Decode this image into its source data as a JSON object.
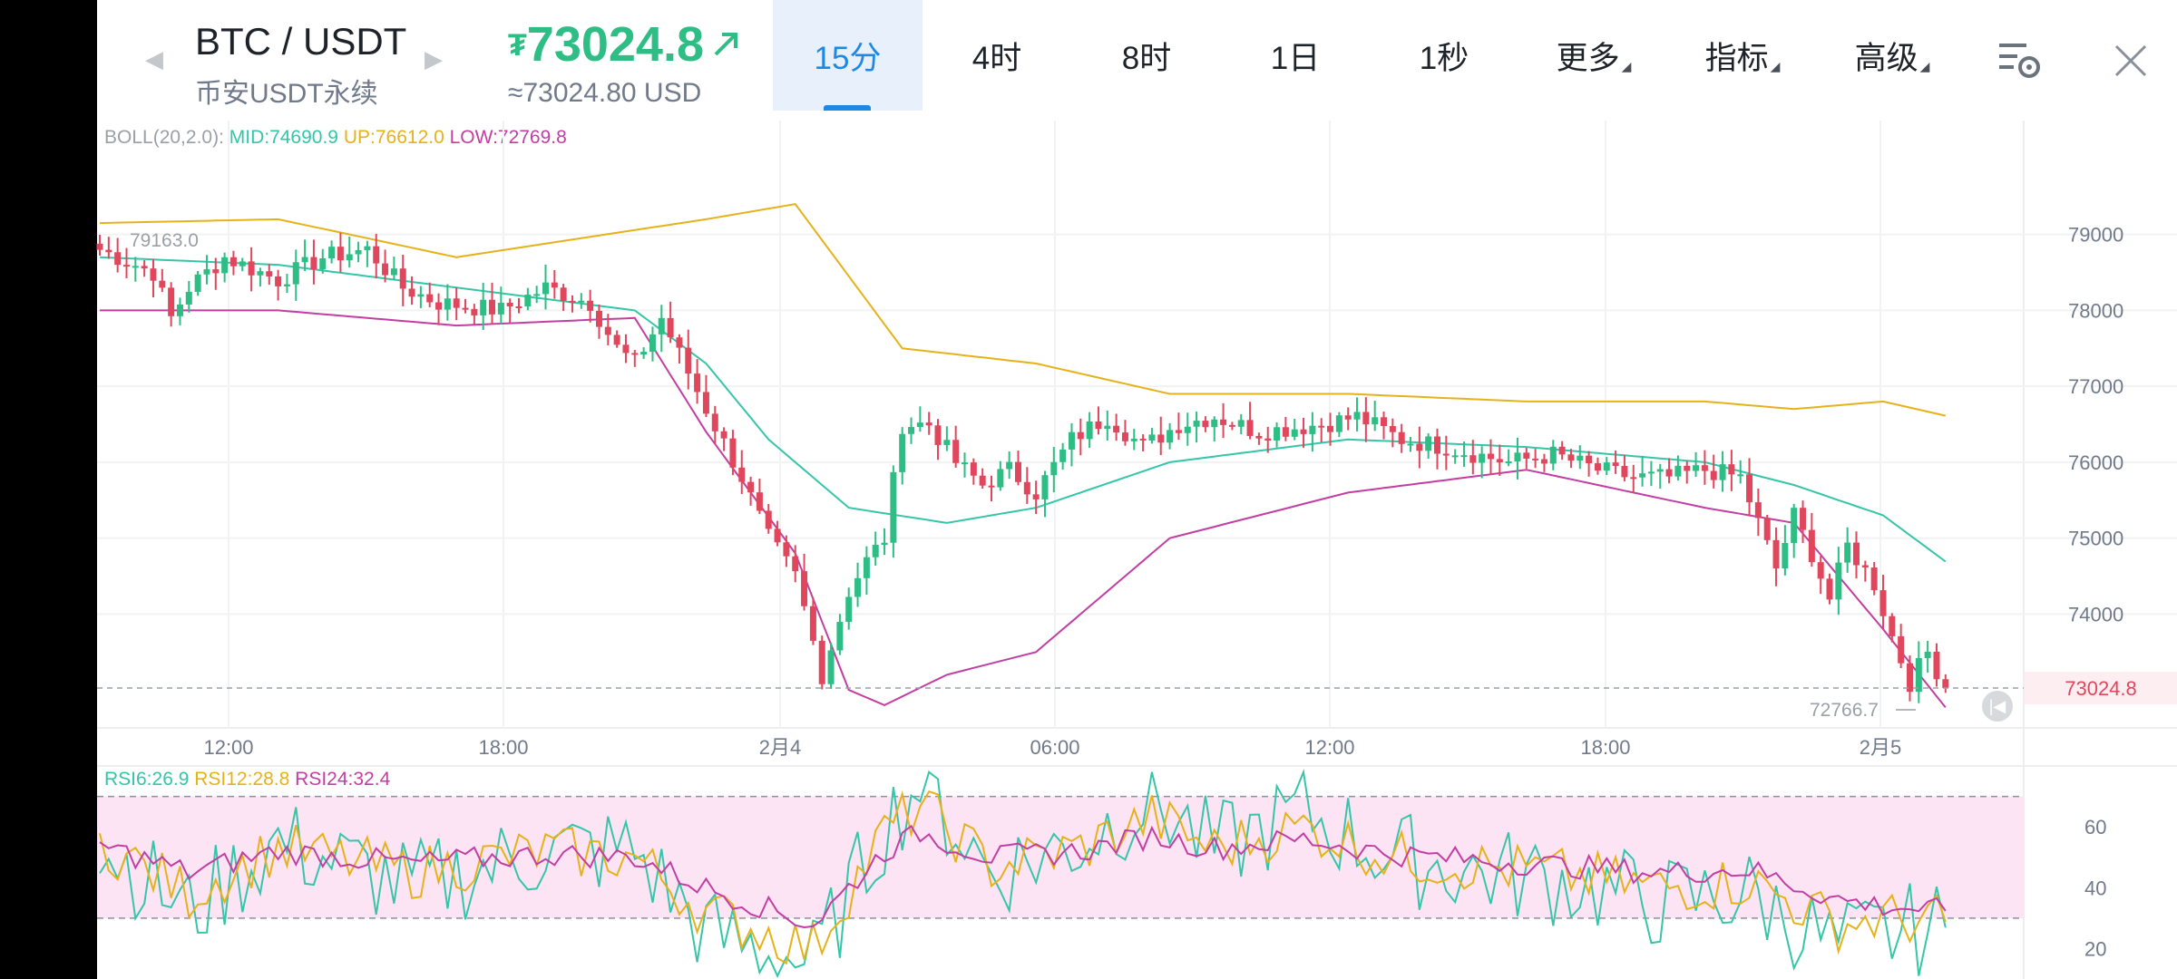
{
  "header": {
    "pair": "BTC / USDT",
    "market": "币安USDT永续",
    "price": "73024.8",
    "price_usd": "≈73024.80 USD",
    "tabs": [
      {
        "label": "15分",
        "active": true
      },
      {
        "label": "4时",
        "active": false
      },
      {
        "label": "8时",
        "active": false
      },
      {
        "label": "1日",
        "active": false
      },
      {
        "label": "1秒",
        "active": false
      },
      {
        "label": "更多",
        "active": false
      },
      {
        "label": "指标",
        "active": false
      },
      {
        "label": "高级",
        "active": false
      }
    ],
    "icons": [
      "left-arrow",
      "right-arrow",
      "trend-up-arrow",
      "chart-settings-icon",
      "close-icon"
    ]
  },
  "colors": {
    "up": "#2ebd85",
    "down": "#e0475d",
    "boll_mid": "#35c5a8",
    "boll_up": "#e6b21a",
    "boll_low": "#c23ea2",
    "rsi6": "#35c5a8",
    "rsi12": "#e6b21a",
    "rsi24": "#c23ea2",
    "accent": "#1e88e5"
  },
  "boll_legend": {
    "label": "BOLL(20,2.0):",
    "mid": "MID:74690.9",
    "up": "UP:76612.0",
    "low": "LOW:72769.8"
  },
  "rsi_legend": {
    "r6": "RSI6:26.9",
    "r12": "RSI12:28.8",
    "r24": "RSI24:32.4"
  },
  "chart_data": [
    {
      "type": "candlestick",
      "y_ticks": [
        79000,
        78000,
        77000,
        76000,
        75000,
        74000
      ],
      "ylim": [
        72500,
        80500
      ],
      "x_ticks": [
        "12:00",
        "18:00",
        "2月4",
        "06:00",
        "12:00",
        "18:00",
        "2月5"
      ],
      "annotations": {
        "high_marker": "79163.0",
        "low_marker": "72766.7",
        "last_price": "73024.8"
      },
      "close_anchors": [
        [
          0,
          78800
        ],
        [
          6,
          78500
        ],
        [
          8,
          77900
        ],
        [
          10,
          78300
        ],
        [
          14,
          78700
        ],
        [
          20,
          78400
        ],
        [
          25,
          78700
        ],
        [
          30,
          78800
        ],
        [
          34,
          78300
        ],
        [
          38,
          78100
        ],
        [
          45,
          78000
        ],
        [
          50,
          78300
        ],
        [
          55,
          78100
        ],
        [
          58,
          77500
        ],
        [
          60,
          77300
        ],
        [
          63,
          77900
        ],
        [
          68,
          76700
        ],
        [
          72,
          75800
        ],
        [
          75,
          75000
        ],
        [
          78,
          74500
        ],
        [
          81,
          73200
        ],
        [
          84,
          74300
        ],
        [
          86,
          74700
        ],
        [
          88,
          75000
        ],
        [
          90,
          76500
        ],
        [
          93,
          76500
        ],
        [
          96,
          76000
        ],
        [
          99,
          75700
        ],
        [
          102,
          75900
        ],
        [
          105,
          75600
        ],
        [
          109,
          76300
        ],
        [
          113,
          76600
        ],
        [
          117,
          76200
        ],
        [
          121,
          76500
        ],
        [
          125,
          76600
        ],
        [
          130,
          76400
        ],
        [
          137,
          76500
        ],
        [
          141,
          76600
        ],
        [
          146,
          76300
        ],
        [
          151,
          76200
        ],
        [
          158,
          76000
        ],
        [
          163,
          76100
        ],
        [
          168,
          75900
        ],
        [
          172,
          75800
        ],
        [
          176,
          75800
        ],
        [
          180,
          75900
        ],
        [
          184,
          75800
        ],
        [
          188,
          74600
        ],
        [
          190,
          75300
        ],
        [
          192,
          74800
        ],
        [
          194,
          74200
        ],
        [
          196,
          74900
        ],
        [
          199,
          74400
        ],
        [
          201,
          73700
        ],
        [
          203,
          73100
        ],
        [
          205,
          73500
        ],
        [
          207,
          73024.8
        ]
      ],
      "boll_mid_anchors": [
        [
          0,
          78700
        ],
        [
          20,
          78600
        ],
        [
          40,
          78300
        ],
        [
          60,
          78000
        ],
        [
          68,
          77300
        ],
        [
          75,
          76300
        ],
        [
          84,
          75400
        ],
        [
          95,
          75200
        ],
        [
          105,
          75400
        ],
        [
          120,
          76000
        ],
        [
          140,
          76300
        ],
        [
          160,
          76200
        ],
        [
          180,
          76000
        ],
        [
          190,
          75700
        ],
        [
          200,
          75300
        ],
        [
          207,
          74690.9
        ]
      ],
      "boll_up_anchors": [
        [
          0,
          79150
        ],
        [
          20,
          79200
        ],
        [
          40,
          78700
        ],
        [
          68,
          79200
        ],
        [
          78,
          79400
        ],
        [
          90,
          77500
        ],
        [
          105,
          77300
        ],
        [
          120,
          76900
        ],
        [
          140,
          76900
        ],
        [
          160,
          76800
        ],
        [
          180,
          76800
        ],
        [
          190,
          76700
        ],
        [
          200,
          76800
        ],
        [
          207,
          76612
        ]
      ],
      "boll_low_anchors": [
        [
          0,
          78000
        ],
        [
          20,
          78000
        ],
        [
          40,
          77800
        ],
        [
          60,
          77900
        ],
        [
          68,
          76400
        ],
        [
          78,
          74800
        ],
        [
          84,
          73000
        ],
        [
          88,
          72800
        ],
        [
          95,
          73200
        ],
        [
          105,
          73500
        ],
        [
          120,
          75000
        ],
        [
          140,
          75600
        ],
        [
          160,
          75900
        ],
        [
          180,
          75400
        ],
        [
          190,
          75200
        ],
        [
          200,
          73800
        ],
        [
          207,
          72769.8
        ]
      ]
    },
    {
      "type": "line",
      "title": "RSI",
      "y_ticks": [
        60,
        40,
        20
      ],
      "ylim": [
        10,
        80
      ],
      "bands": [
        70,
        30
      ],
      "series": [
        {
          "name": "RSI6",
          "anchors": [
            [
              0,
              55
            ],
            [
              10,
              32
            ],
            [
              20,
              55
            ],
            [
              35,
              40
            ],
            [
              50,
              52
            ],
            [
              60,
              52
            ],
            [
              68,
              25
            ],
            [
              80,
              15
            ],
            [
              88,
              60
            ],
            [
              92,
              75
            ],
            [
              100,
              45
            ],
            [
              110,
              55
            ],
            [
              118,
              70
            ],
            [
              125,
              52
            ],
            [
              135,
              65
            ],
            [
              145,
              50
            ],
            [
              155,
              45
            ],
            [
              165,
              42
            ],
            [
              175,
              35
            ],
            [
              185,
              38
            ],
            [
              195,
              20
            ],
            [
              200,
              25
            ],
            [
              207,
              26.9
            ]
          ]
        },
        {
          "name": "RSI12",
          "anchors": [
            [
              0,
              55
            ],
            [
              10,
              38
            ],
            [
              20,
              53
            ],
            [
              35,
              45
            ],
            [
              50,
              52
            ],
            [
              60,
              50
            ],
            [
              68,
              32
            ],
            [
              80,
              20
            ],
            [
              88,
              58
            ],
            [
              92,
              67
            ],
            [
              100,
              47
            ],
            [
              110,
              53
            ],
            [
              118,
              63
            ],
            [
              125,
              53
            ],
            [
              135,
              60
            ],
            [
              145,
              50
            ],
            [
              155,
              47
            ],
            [
              165,
              44
            ],
            [
              175,
              40
            ],
            [
              185,
              42
            ],
            [
              195,
              28
            ],
            [
              200,
              30
            ],
            [
              207,
              28.8
            ]
          ]
        },
        {
          "name": "RSI24",
          "anchors": [
            [
              0,
              54
            ],
            [
              10,
              45
            ],
            [
              20,
              52
            ],
            [
              35,
              48
            ],
            [
              50,
              51
            ],
            [
              60,
              50
            ],
            [
              68,
              40
            ],
            [
              80,
              28
            ],
            [
              88,
              52
            ],
            [
              92,
              58
            ],
            [
              100,
              50
            ],
            [
              110,
              52
            ],
            [
              118,
              57
            ],
            [
              125,
              53
            ],
            [
              135,
              56
            ],
            [
              145,
              51
            ],
            [
              155,
              49
            ],
            [
              165,
              47
            ],
            [
              175,
              45
            ],
            [
              185,
              46
            ],
            [
              195,
              36
            ],
            [
              200,
              34
            ],
            [
              207,
              32.4
            ]
          ]
        }
      ]
    }
  ]
}
